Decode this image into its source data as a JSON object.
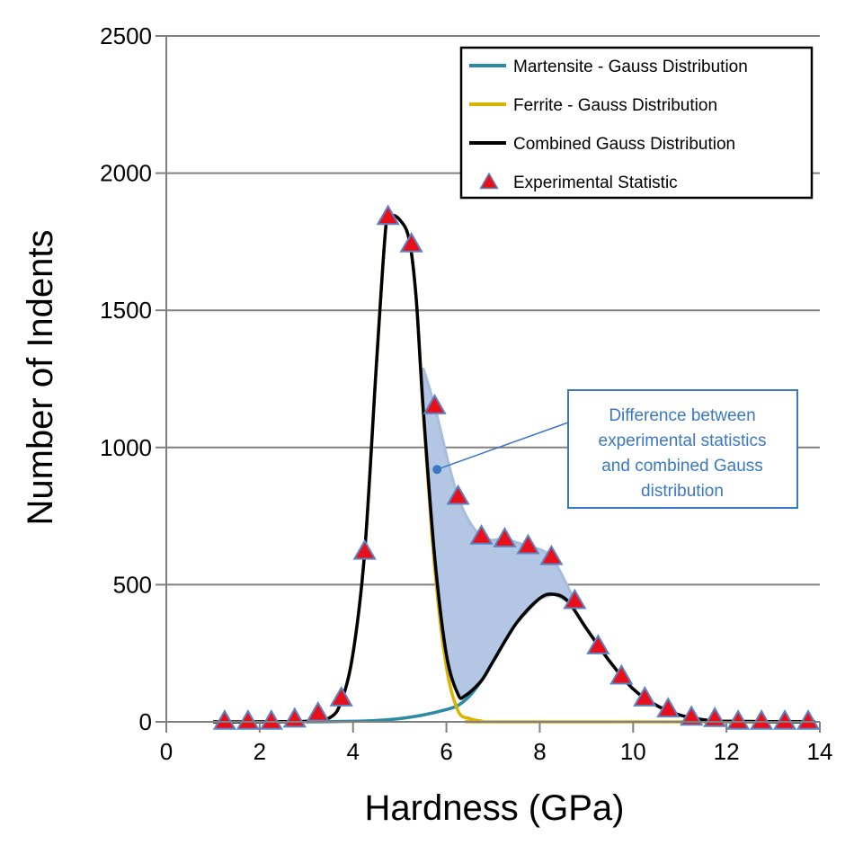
{
  "chart_data": {
    "type": "line",
    "xlabel": "Hardness (GPa)",
    "ylabel": "Number of Indents",
    "xlim": [
      0,
      14
    ],
    "ylim": [
      0,
      2500
    ],
    "xticks": [
      0,
      2,
      4,
      6,
      8,
      10,
      12,
      14
    ],
    "yticks": [
      0,
      500,
      1000,
      1500,
      2000,
      2500
    ],
    "grid": "horizontal",
    "legend_placement": "top-right",
    "series": [
      {
        "name": "Martensite - Gauss Distribution",
        "kind": "line",
        "color": "#2b8ba3",
        "x": [
          3.0,
          4.0,
          4.5,
          5.0,
          5.5,
          6.0,
          6.25,
          6.5,
          6.75,
          7.0,
          7.5,
          8.0,
          8.3,
          8.6,
          9.0,
          9.5,
          10.0,
          10.5,
          11.0,
          11.5,
          12.0,
          13.9
        ],
        "y": [
          0,
          2,
          5,
          12,
          25,
          45,
          60,
          95,
          150,
          220,
          360,
          450,
          465,
          440,
          340,
          220,
          120,
          60,
          25,
          8,
          2,
          0
        ]
      },
      {
        "name": "Ferrite - Gauss Distribution",
        "kind": "line",
        "color": "#d9b300",
        "x": [
          3.0,
          3.5,
          3.75,
          4.0,
          4.25,
          4.5,
          4.7,
          4.8,
          5.0,
          5.2,
          5.35,
          5.5,
          5.75,
          6.0,
          6.25,
          6.5,
          6.75,
          7.0,
          13.9
        ],
        "y": [
          2,
          15,
          75,
          250,
          620,
          1300,
          1800,
          1845,
          1830,
          1760,
          1550,
          1140,
          560,
          200,
          40,
          12,
          3,
          0,
          0
        ]
      },
      {
        "name": "Combined Gauss Distribution",
        "kind": "line",
        "color": "#000000",
        "x": [
          1.0,
          3.0,
          3.5,
          3.75,
          4.0,
          4.25,
          4.5,
          4.7,
          4.8,
          5.0,
          5.2,
          5.35,
          5.5,
          5.75,
          6.0,
          6.25,
          6.4,
          6.75,
          7.0,
          7.5,
          8.0,
          8.3,
          8.6,
          9.0,
          9.5,
          10.0,
          10.5,
          11.0,
          11.5,
          12.0,
          13.9
        ],
        "y": [
          0,
          2,
          15,
          75,
          250,
          620,
          1300,
          1800,
          1845,
          1830,
          1760,
          1550,
          1150,
          600,
          245,
          100,
          95,
          150,
          220,
          360,
          450,
          465,
          440,
          340,
          220,
          120,
          60,
          25,
          8,
          2,
          0
        ]
      },
      {
        "name": "Experimental Statistic",
        "kind": "scatter",
        "marker": "triangle",
        "color": "#e8101a",
        "edge_color": "#5b84c4",
        "x": [
          1.25,
          1.75,
          2.25,
          2.75,
          3.25,
          3.75,
          4.25,
          4.75,
          5.25,
          5.75,
          6.25,
          6.75,
          7.25,
          7.75,
          8.25,
          8.75,
          9.25,
          9.75,
          10.25,
          10.75,
          11.25,
          11.75,
          12.25,
          12.75,
          13.25,
          13.75
        ],
        "y": [
          0,
          0,
          0,
          8,
          30,
          85,
          620,
          1840,
          1740,
          1150,
          820,
          675,
          665,
          640,
          600,
          440,
          275,
          165,
          85,
          45,
          15,
          10,
          0,
          0,
          0,
          0
        ]
      }
    ],
    "shaded_region": {
      "color": "#b3c6e3",
      "upper_x": [
        5.5,
        5.75,
        6.25,
        6.75,
        7.25,
        7.75,
        8.25,
        8.75
      ],
      "upper_y": [
        1290,
        1150,
        820,
        675,
        665,
        640,
        600,
        440
      ]
    },
    "annotation": {
      "text_lines": [
        "Difference between",
        "experimental statistics",
        "and combined Gauss",
        "distribution"
      ],
      "color": "#3a78c2",
      "point": [
        5.8,
        920
      ]
    }
  }
}
